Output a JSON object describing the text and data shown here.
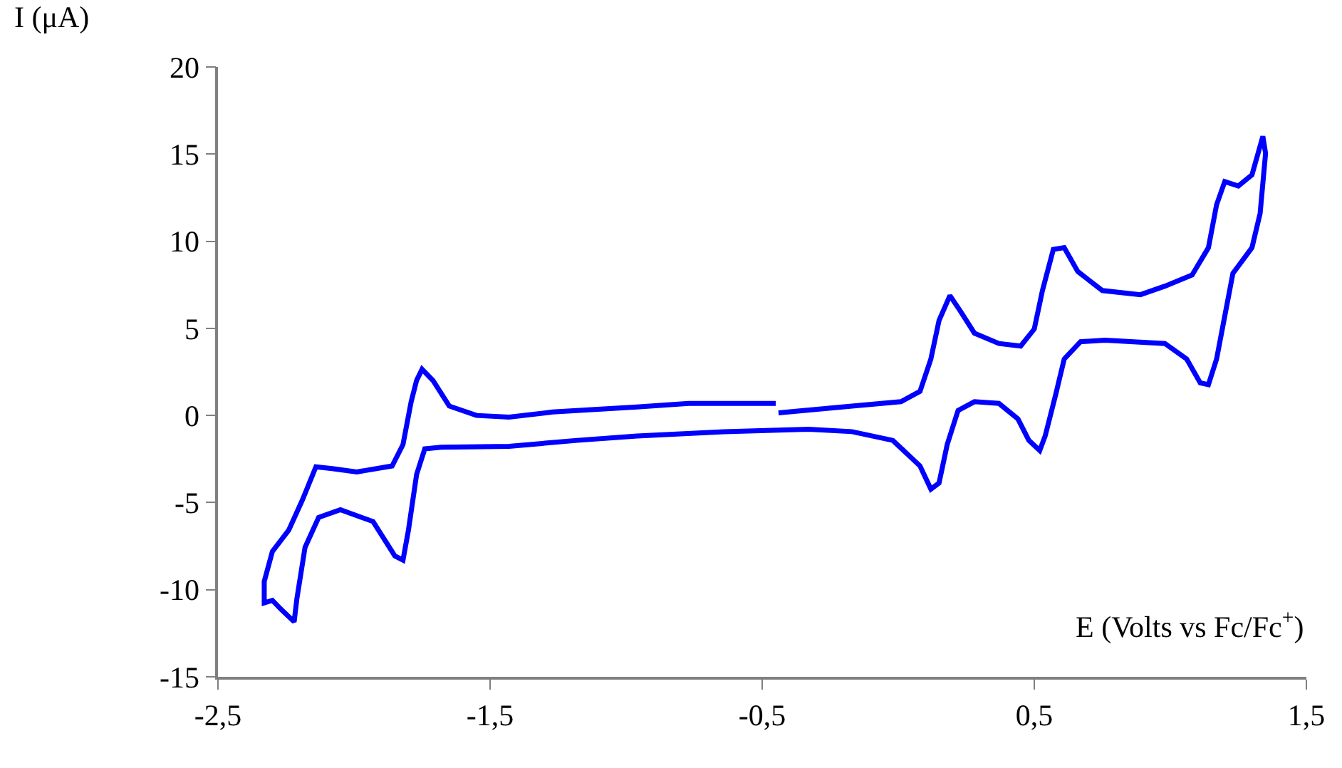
{
  "chart_data": {
    "type": "line",
    "xlabel": "E (Volts vs Fc/Fc$^{+}$)",
    "ylabel": "I (μA)",
    "xlim": [
      -2.5,
      1.5
    ],
    "ylim": [
      -15,
      20
    ],
    "xticks": [
      {
        "value": -2.5,
        "label": "-2,5"
      },
      {
        "value": -1.5,
        "label": "-1,5"
      },
      {
        "value": -0.5,
        "label": "-0,5"
      },
      {
        "value": 0.5,
        "label": "0,5"
      },
      {
        "value": 1.5,
        "label": "1,5"
      }
    ],
    "yticks": [
      -15,
      -10,
      -5,
      0,
      5,
      10,
      15,
      20
    ],
    "marker": "none",
    "line_style": "solid",
    "series": [
      {
        "color": "#0000ff",
        "x": [
          -0.44,
          -0.17,
          0.01,
          0.08,
          0.12,
          0.15,
          0.19,
          0.23,
          0.28,
          0.37,
          0.45,
          0.5,
          0.53,
          0.57,
          0.61,
          0.66,
          0.75,
          0.89,
          0.98,
          1.08,
          1.14,
          1.17,
          1.2,
          1.25,
          1.3,
          1.34,
          1.35,
          1.33,
          1.3,
          1.23,
          1.2,
          1.17,
          1.14,
          1.11,
          1.06,
          0.98,
          0.76,
          0.67,
          0.61,
          0.58,
          0.54,
          0.52,
          0.48,
          0.44,
          0.37,
          0.28,
          0.22,
          0.18,
          0.15,
          0.12,
          0.08,
          -0.02,
          -0.17,
          -0.33,
          -0.64,
          -0.96,
          -1.18,
          -1.43,
          -1.68,
          -1.74,
          -1.77,
          -1.8,
          -1.82,
          -1.85,
          -1.93,
          -2.05,
          -2.13,
          -2.18,
          -2.21,
          -2.22,
          -2.27,
          -2.3,
          -2.33,
          -2.33,
          -2.3,
          -2.24,
          -2.19,
          -2.14,
          -2.08,
          -1.99,
          -1.86,
          -1.82,
          -1.79,
          -1.77,
          -1.75,
          -1.71,
          -1.65,
          -1.55,
          -1.43,
          -1.27,
          -0.96,
          -0.77,
          -0.45
        ],
        "values": [
          0.15,
          0.54,
          0.79,
          1.38,
          3.24,
          5.45,
          6.88,
          5.95,
          4.72,
          4.13,
          3.98,
          4.96,
          7.17,
          9.53,
          9.63,
          8.26,
          7.17,
          6.93,
          7.42,
          8.06,
          9.63,
          12.09,
          13.42,
          13.17,
          13.81,
          16.02,
          15.04,
          11.6,
          9.63,
          8.16,
          5.7,
          3.24,
          1.77,
          1.87,
          3.24,
          4.13,
          4.32,
          4.23,
          3.24,
          1.28,
          -1.18,
          -2.01,
          -1.43,
          -0.2,
          0.69,
          0.79,
          0.29,
          -1.67,
          -3.88,
          -4.23,
          -2.9,
          -1.43,
          -0.93,
          -0.79,
          -0.93,
          -1.18,
          -1.43,
          -1.77,
          -1.82,
          -1.92,
          -3.39,
          -6.58,
          -8.3,
          -8.06,
          -6.09,
          -5.41,
          -5.85,
          -7.57,
          -10.52,
          -11.84,
          -11.1,
          -10.61,
          -10.76,
          -9.53,
          -7.81,
          -6.58,
          -4.86,
          -2.95,
          -3.05,
          -3.24,
          -2.9,
          -1.67,
          0.79,
          2.01,
          2.65,
          2.01,
          0.54,
          0.0,
          -0.1,
          0.2,
          0.49,
          0.69,
          0.69
        ]
      }
    ]
  }
}
